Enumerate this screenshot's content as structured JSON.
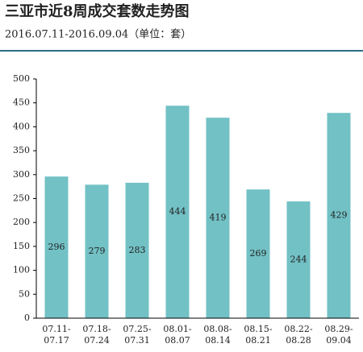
{
  "chart_data": {
    "type": "bar",
    "title": "三亚市近8周成交套数走势图",
    "subtitle": "2016.07.11-2016.09.04（单位：套）",
    "categories": [
      "07.11-07.17",
      "07.18-07.24",
      "07.25-07.31",
      "08.01-08.07",
      "08.08-08.14",
      "08.15-08.21",
      "08.22-08.28",
      "08.29-09.04"
    ],
    "values": [
      296,
      279,
      283,
      444,
      419,
      269,
      244,
      429
    ],
    "color": "#72c1c5",
    "ylim": [
      0,
      500
    ],
    "yticks": [
      0,
      50,
      100,
      150,
      200,
      250,
      300,
      350,
      400,
      450,
      500
    ],
    "grid": false
  }
}
